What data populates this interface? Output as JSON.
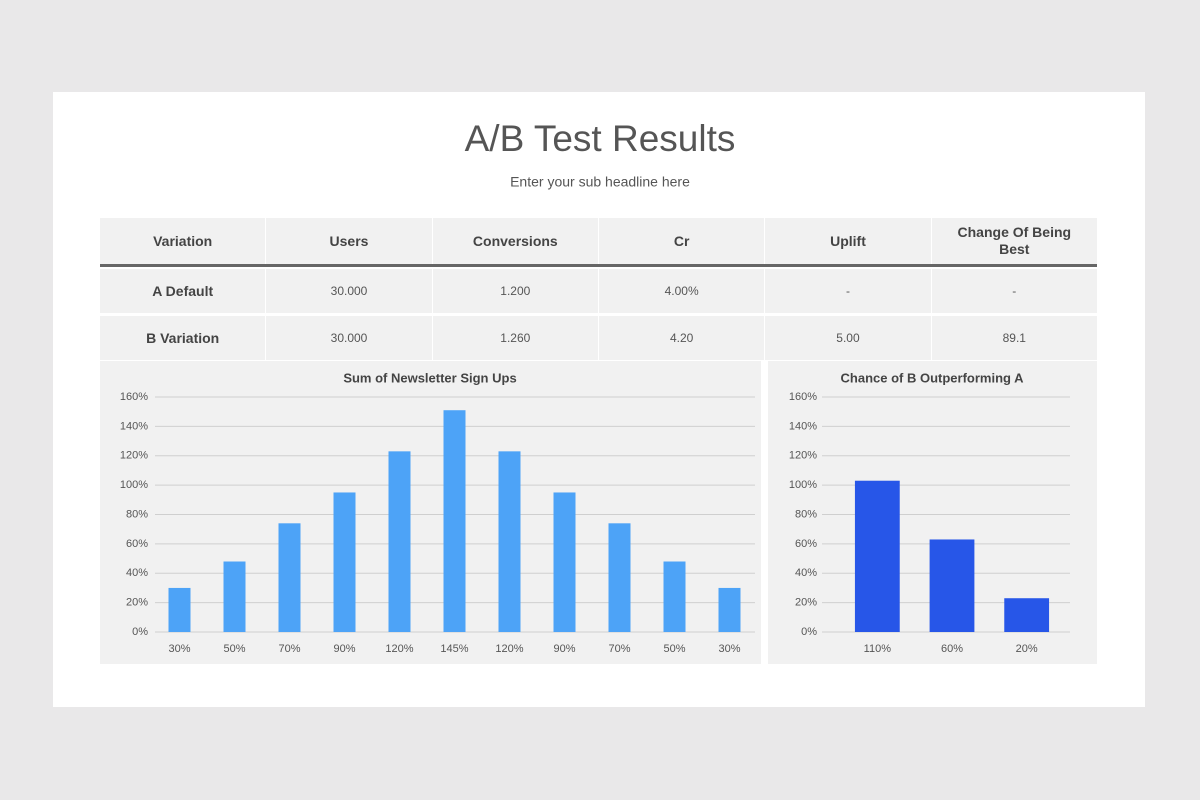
{
  "header": {
    "title": "A/B Test Results",
    "subtitle": "Enter your sub headline here"
  },
  "table": {
    "columns": [
      "Variation",
      "Users",
      "Conversions",
      "Cr",
      "Uplift",
      "Change Of Being Best"
    ],
    "rows": [
      [
        "A Default",
        "30.000",
        "1.200",
        "4.00%",
        "-",
        "-"
      ],
      [
        "B Variation",
        "30.000",
        "1.260",
        "4.20",
        "5.00",
        "89.1"
      ]
    ]
  },
  "chart_data": [
    {
      "type": "bar",
      "title": "Sum of Newsletter Sign Ups",
      "categories": [
        "30%",
        "50%",
        "70%",
        "90%",
        "120%",
        "145%",
        "120%",
        "90%",
        "70%",
        "50%",
        "30%"
      ],
      "values": [
        30,
        48,
        74,
        95,
        123,
        151,
        123,
        95,
        74,
        48,
        30
      ],
      "color": "#4da3f7",
      "ylim": [
        0,
        160
      ],
      "yticks": [
        {
          "value": 0,
          "label": "0%"
        },
        {
          "value": 20,
          "label": "20%"
        },
        {
          "value": 40,
          "label": "40%"
        },
        {
          "value": 60,
          "label": "60%"
        },
        {
          "value": 80,
          "label": "80%"
        },
        {
          "value": 100,
          "label": "100%"
        },
        {
          "value": 120,
          "label": "120%"
        },
        {
          "value": 140,
          "label": "140%"
        },
        {
          "value": 160,
          "label": "160%"
        }
      ],
      "grid": true
    },
    {
      "type": "bar",
      "title": "Chance of B Outperforming A",
      "categories": [
        "110%",
        "60%",
        "20%"
      ],
      "values": [
        103,
        63,
        23
      ],
      "color": "#2756e8",
      "ylim": [
        0,
        160
      ],
      "yticks": [
        {
          "value": 0,
          "label": "0%"
        },
        {
          "value": 20,
          "label": "20%"
        },
        {
          "value": 40,
          "label": "40%"
        },
        {
          "value": 60,
          "label": "60%"
        },
        {
          "value": 80,
          "label": "80%"
        },
        {
          "value": 100,
          "label": "100%"
        },
        {
          "value": 120,
          "label": "120%"
        },
        {
          "value": 140,
          "label": "140%"
        },
        {
          "value": 160,
          "label": "160%"
        }
      ],
      "grid": true
    }
  ]
}
